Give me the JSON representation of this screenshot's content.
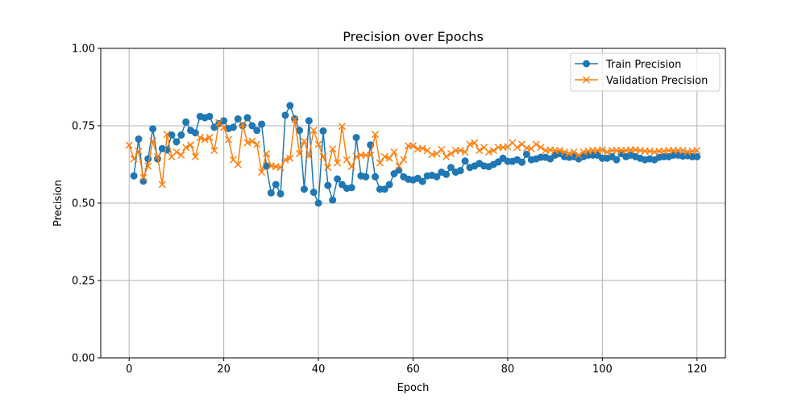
{
  "chart_data": {
    "type": "line",
    "title": "Precision over Epochs",
    "xlabel": "Epoch",
    "ylabel": "Precision",
    "xlim": [
      -6,
      126
    ],
    "ylim": [
      0.0,
      1.0
    ],
    "xticks": [
      0,
      20,
      40,
      60,
      80,
      100,
      120
    ],
    "yticks": [
      0.0,
      0.25,
      0.5,
      0.75,
      1.0
    ],
    "xtick_labels": [
      "0",
      "20",
      "40",
      "60",
      "80",
      "100",
      "120"
    ],
    "ytick_labels": [
      "0.00",
      "0.25",
      "0.50",
      "0.75",
      "1.00"
    ],
    "grid": true,
    "legend_position": "top-right",
    "series": [
      {
        "name": "Train Precision",
        "color": "#1f77b4",
        "marker": "circle",
        "values": [
          null,
          0.588,
          0.707,
          0.571,
          0.643,
          0.74,
          0.643,
          0.676,
          0.672,
          0.72,
          0.698,
          0.72,
          0.762,
          0.735,
          0.727,
          0.78,
          0.776,
          0.78,
          0.745,
          0.757,
          0.766,
          0.741,
          0.745,
          0.772,
          0.75,
          0.776,
          0.75,
          0.735,
          0.755,
          0.62,
          0.533,
          0.56,
          0.53,
          0.784,
          0.815,
          0.772,
          0.735,
          0.545,
          0.766,
          0.535,
          0.5,
          0.733,
          0.557,
          0.51,
          0.578,
          0.56,
          0.548,
          0.55,
          0.712,
          0.588,
          0.585,
          0.688,
          0.585,
          0.545,
          0.545,
          0.56,
          0.595,
          0.607,
          0.585,
          0.577,
          0.575,
          0.58,
          0.57,
          0.588,
          0.59,
          0.585,
          0.6,
          0.593,
          0.615,
          0.6,
          0.605,
          0.636,
          0.615,
          0.62,
          0.628,
          0.62,
          0.618,
          0.625,
          0.633,
          0.645,
          0.635,
          0.635,
          0.64,
          0.632,
          0.658,
          0.64,
          0.643,
          0.648,
          0.648,
          0.643,
          0.655,
          0.66,
          0.65,
          0.648,
          0.65,
          0.643,
          0.65,
          0.655,
          0.655,
          0.655,
          0.645,
          0.645,
          0.65,
          0.64,
          0.66,
          0.65,
          0.655,
          0.65,
          0.645,
          0.64,
          0.643,
          0.64,
          0.648,
          0.65,
          0.65,
          0.655,
          0.655,
          0.652,
          0.653,
          0.65,
          0.65
        ]
      },
      {
        "name": "Validation Precision",
        "color": "#ff7f0e",
        "marker": "x",
        "values": [
          0.687,
          0.643,
          0.668,
          0.583,
          0.62,
          0.7,
          0.65,
          0.56,
          0.722,
          0.65,
          0.665,
          0.655,
          0.68,
          0.688,
          0.65,
          0.712,
          0.705,
          0.712,
          0.67,
          0.76,
          0.745,
          0.705,
          0.64,
          0.625,
          0.755,
          0.695,
          0.7,
          0.69,
          0.6,
          0.66,
          0.62,
          0.618,
          0.615,
          0.64,
          0.645,
          0.77,
          0.66,
          0.7,
          0.652,
          0.735,
          0.69,
          0.65,
          0.615,
          0.675,
          0.63,
          0.748,
          0.64,
          0.618,
          0.65,
          0.655,
          0.655,
          0.655,
          0.722,
          0.63,
          0.65,
          0.645,
          0.665,
          0.62,
          0.64,
          0.685,
          0.685,
          0.675,
          0.677,
          0.67,
          0.657,
          0.66,
          0.673,
          0.65,
          0.66,
          0.67,
          0.67,
          0.665,
          0.69,
          0.695,
          0.67,
          0.68,
          0.665,
          0.67,
          0.68,
          0.68,
          0.682,
          0.695,
          0.68,
          0.69,
          0.678,
          0.676,
          0.69,
          0.68,
          0.67,
          0.672,
          0.67,
          0.67,
          0.665,
          0.66,
          0.665,
          0.655,
          0.665,
          0.668,
          0.67,
          0.67,
          0.672,
          0.665,
          0.67,
          0.67,
          0.67,
          0.67,
          0.672,
          0.672,
          0.67,
          0.668,
          0.668,
          0.665,
          0.668,
          0.668,
          0.67,
          0.67,
          0.67,
          0.67,
          0.665,
          0.668,
          0.67
        ]
      }
    ]
  }
}
